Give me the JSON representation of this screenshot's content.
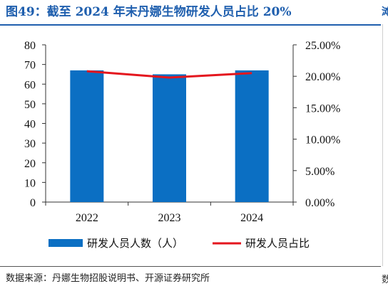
{
  "title": "图49：截至 2024 年末丹娜生物研发人员占比 20%",
  "source": "数据来源：丹娜生物招股说明书、开源证券研究所",
  "edge_glyph_top": "滩",
  "edge_glyph_bottom": "数",
  "colors": {
    "bar": "#0b6fc3",
    "line": "#e4161e",
    "title": "#1f5fae"
  },
  "chart_data": {
    "type": "bar+line",
    "categories": [
      "2022",
      "2023",
      "2024"
    ],
    "series": [
      {
        "name": "研发人员人数（人）",
        "type": "bar",
        "axis": "left",
        "values": [
          67,
          65,
          67
        ]
      },
      {
        "name": "研发人员占比",
        "type": "line",
        "axis": "right",
        "values": [
          20.8,
          19.8,
          20.5
        ]
      }
    ],
    "y_left": {
      "min": 0,
      "max": 80,
      "ticks": [
        "0",
        "10",
        "20",
        "30",
        "40",
        "50",
        "60",
        "70",
        "80"
      ]
    },
    "y_right": {
      "min": 0,
      "max": 25,
      "ticks": [
        "0.00%",
        "5.00%",
        "10.00%",
        "15.00%",
        "20.00%",
        "25.00%"
      ]
    },
    "grid": false,
    "legend": "bottom"
  }
}
